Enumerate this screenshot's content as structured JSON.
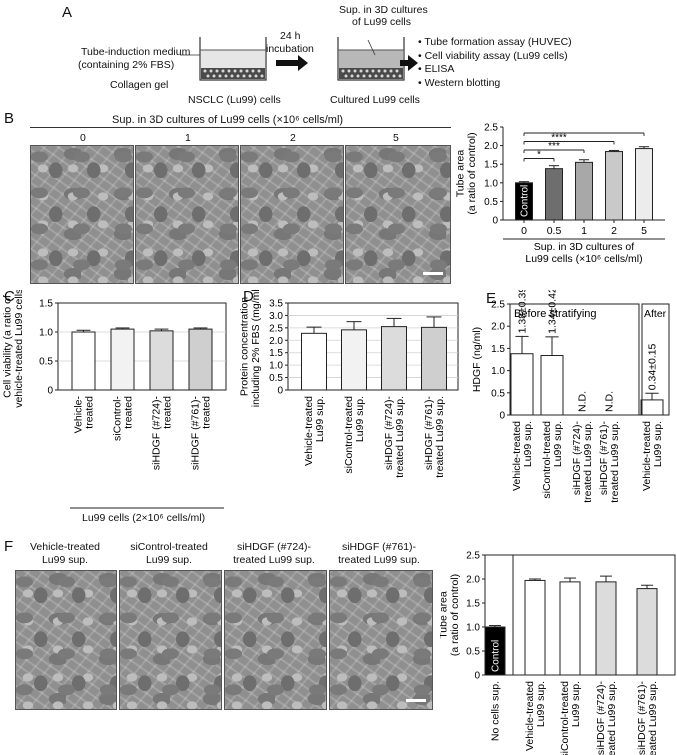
{
  "panels": {
    "A": {
      "label": "A",
      "medium": "Tube-induction medium",
      "medium2": "(containing 2% FBS)",
      "gel": "Collagen gel",
      "cells": "NSCLC (Lu99) cells",
      "arrow_top": "24 h",
      "arrow_bottom": "incubation",
      "sup_line1": "Sup. in 3D cultures",
      "sup_line2": "of Lu99 cells",
      "cultured": "Cultured Lu99 cells",
      "assays": [
        "Tube formation assay (HUVEC)",
        "Cell viability assay (Lu99 cells)",
        "ELISA",
        "Western blotting"
      ]
    },
    "B": {
      "label": "B",
      "header": "Sup. in 3D cultures of Lu99 cells (×10⁶ cells/ml)",
      "image_labels": [
        "0",
        "1",
        "2",
        "5"
      ]
    },
    "C": {
      "label": "C",
      "group_label": "Lu99 cells (2×10⁶ cells/ml)"
    },
    "D": {
      "label": "D"
    },
    "E": {
      "label": "E",
      "before": "Before stratifying",
      "after": "After"
    },
    "F": {
      "label": "F",
      "image_labels": [
        [
          "Vehicle-treated",
          "Lu99 sup."
        ],
        [
          "siControl-treated",
          "Lu99 sup."
        ],
        [
          "siHDGF (#724)-",
          "treated Lu99 sup."
        ],
        [
          "siHDGF (#761)-",
          "treated Lu99 sup."
        ]
      ]
    }
  },
  "chart_data": [
    {
      "panel": "B",
      "type": "bar",
      "categories": [
        "0",
        "0.5",
        "1",
        "2",
        "5"
      ],
      "values": [
        1.0,
        1.38,
        1.55,
        1.84,
        1.92
      ],
      "errors": [
        0.03,
        0.08,
        0.07,
        0.03,
        0.05
      ],
      "colors": [
        "#000000",
        "#6e6e6e",
        "#a8a8a8",
        "#c9c9c9",
        "#ececec"
      ],
      "bar_text": [
        "Control",
        "",
        "",
        "",
        ""
      ],
      "ylabel_lines": [
        "Tube area",
        "(a ratio of control)"
      ],
      "xlabel_lines": [
        "Sup. in 3D cultures of",
        "Lu99 cells (×10⁶ cells/ml)"
      ],
      "yticks": [
        "0",
        "0.5",
        "1.0",
        "1.5",
        "2.0",
        "2.5"
      ],
      "ylim": [
        0,
        2.5
      ],
      "significance": [
        {
          "from": 0,
          "to": 1,
          "label": "*"
        },
        {
          "from": 0,
          "to": 2,
          "label": "***"
        },
        {
          "from": 0,
          "to": 3,
          "label": "****"
        },
        {
          "from": 0,
          "to": 4,
          "label": ""
        }
      ]
    },
    {
      "panel": "C",
      "type": "bar",
      "categories": [
        [
          "Vehicle-",
          "treated"
        ],
        [
          "siControl-",
          "treated"
        ],
        [
          "siHDGF (#724)-",
          "treated"
        ],
        [
          "siHDGF (#761)-",
          "treated"
        ]
      ],
      "values": [
        1.0,
        1.05,
        1.02,
        1.05
      ],
      "errors": [
        0.03,
        0.02,
        0.03,
        0.02
      ],
      "colors": [
        "#ffffff",
        "#f2f2f2",
        "#dcdcdc",
        "#cfcfcf"
      ],
      "ylabel_lines": [
        "Cell viability (a ratio of",
        "vehicle-treated Lu99 cells)"
      ],
      "yticks": [
        "0",
        "0.5",
        "1.0",
        "1.5"
      ],
      "ylim": [
        0,
        1.5
      ]
    },
    {
      "panel": "D",
      "type": "bar",
      "categories": [
        [
          "Vehicle-treated",
          "Lu99 sup."
        ],
        [
          "siControl-treated",
          "Lu99 sup."
        ],
        [
          "siHDGF (#724)-",
          "treated Lu99 sup."
        ],
        [
          "siHDGF (#761)-",
          "treated Lu99 sup."
        ]
      ],
      "values": [
        2.28,
        2.42,
        2.55,
        2.52
      ],
      "errors": [
        0.25,
        0.33,
        0.33,
        0.42
      ],
      "colors": [
        "#ffffff",
        "#f2f2f2",
        "#dcdcdc",
        "#cfcfcf"
      ],
      "ylabel_lines": [
        "Protein concentration",
        "including 2% FBS (mg/ml)"
      ],
      "yticks": [
        "0",
        "0.5",
        "1.0",
        "1.5",
        "2.0",
        "2.5",
        "3.0",
        "3.5"
      ],
      "ylim": [
        0,
        3.5
      ]
    },
    {
      "panel": "E",
      "type": "bar",
      "categories": [
        [
          "Vehicle-treated",
          "Lu99 sup."
        ],
        [
          "siControl-treated",
          "Lu99 sup."
        ],
        [
          "siHDGF (#724)-",
          "treated Lu99 sup."
        ],
        [
          "siHDGF (#761)-",
          "treated Lu99 sup."
        ],
        [
          "Vehicle-treated",
          "Lu99 sup."
        ]
      ],
      "values": [
        1.38,
        1.34,
        null,
        null,
        0.34
      ],
      "errors": [
        0.39,
        0.42,
        null,
        null,
        0.15
      ],
      "bar_text": [
        "1.38±0.39",
        "1.34±0.42",
        "N.D.",
        "N.D.",
        "0.34±0.15"
      ],
      "ylabel_lines": [
        "HDGF (ng/ml)"
      ],
      "yticks": [
        "0",
        "0.5",
        "1.0",
        "1.5",
        "2.0",
        "2.5"
      ],
      "ylim": [
        0,
        2.5
      ]
    },
    {
      "panel": "F",
      "type": "bar",
      "categories": [
        [
          "No cells sup."
        ],
        [
          "Vehicle-treated",
          "Lu99 sup."
        ],
        [
          "siControl-treated",
          "Lu99 sup."
        ],
        [
          "siHDGF (#724)-",
          "treated Lu99 sup."
        ],
        [
          "siHDGF (#761)-",
          "treated Lu99 sup."
        ]
      ],
      "values": [
        1.0,
        1.97,
        1.94,
        1.94,
        1.8
      ],
      "errors": [
        0.03,
        0.03,
        0.08,
        0.12,
        0.07
      ],
      "colors": [
        "#000000",
        "#ffffff",
        "#ffffff",
        "#dcdcdc",
        "#dcdcdc"
      ],
      "bar_text": [
        "Control",
        "",
        "",
        "",
        ""
      ],
      "ylabel_lines": [
        "Tube area",
        "(a ratio of control)"
      ],
      "yticks": [
        "0",
        "0.5",
        "1.0",
        "1.5",
        "2.0",
        "2.5"
      ],
      "ylim": [
        0,
        2.5
      ]
    }
  ]
}
